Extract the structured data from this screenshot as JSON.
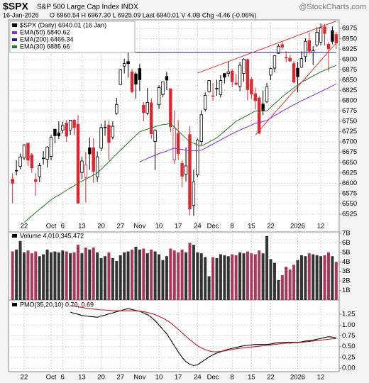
{
  "chart_data": [
    {
      "type": "candlestick",
      "symbol": "$SPX",
      "title": "S&P 500 Large Cap Index INDX",
      "watermark": "@StockCharts.com",
      "date": "16-Jan-2026",
      "quote": "O 6960.54 H 6967.30 L 6925.09 Last 6940.01 V 4.0B Chg -4.46 (-0.06%)",
      "legend": "$SPX (Daily) 6940.01 (16 Jan)",
      "up_color": "#000000",
      "down_color": "#e0262e",
      "categories": [
        null,
        null,
        null,
        "22",
        null,
        null,
        null,
        null,
        null,
        null,
        "Oct",
        null,
        null,
        "6",
        null,
        null,
        null,
        null,
        "13",
        null,
        null,
        null,
        null,
        "20",
        null,
        null,
        null,
        null,
        "27",
        null,
        null,
        null,
        null,
        "Nov",
        null,
        null,
        null,
        null,
        "10",
        null,
        null,
        null,
        null,
        "17",
        null,
        null,
        null,
        null,
        "24",
        null,
        null,
        null,
        "Dec",
        null,
        null,
        null,
        null,
        "8",
        null,
        null,
        null,
        null,
        "15",
        null,
        null,
        null,
        null,
        "22",
        null,
        null,
        null,
        null,
        null,
        null,
        "2026",
        null,
        null,
        null,
        null,
        null,
        "12",
        null,
        null,
        null,
        null
      ],
      "open": [
        6610,
        6630,
        6641,
        6661,
        6697,
        6669,
        6609,
        6616,
        6661,
        6658,
        6665,
        6731,
        6722,
        6729,
        6746,
        6729,
        6753,
        6743,
        6626,
        6614,
        6686,
        6686,
        6615,
        6685,
        6736,
        6741,
        6712,
        6769,
        6839,
        6884,
        6895,
        6870,
        6865,
        6878,
        6789,
        6770,
        6795,
        6701,
        6790,
        6815,
        6859,
        6829,
        6656,
        6721,
        6648,
        6622,
        6718,
        6546,
        6620,
        6701,
        6779,
        6822,
        6812,
        6830,
        6815,
        6866,
        6866,
        6872,
        6843,
        6835,
        6866,
        6900,
        6852,
        6817,
        6807,
        6792,
        6797,
        6862,
        6879,
        6915,
        6936,
        6905,
        6903,
        6890,
        6879,
        6881,
        6907,
        6946,
        6917,
        6935,
        6942,
        6979,
        6937,
        6970,
        6960.54
      ],
      "high": [
        6624,
        6656,
        6672,
        6695,
        6698,
        6673,
        6624,
        6649,
        6678,
        6690,
        6717,
        6731,
        6750,
        6749,
        6754,
        6753,
        6755,
        6765,
        6664,
        6676,
        6711,
        6709,
        6677,
        6744,
        6752,
        6752,
        6750,
        6807,
        6877,
        6902,
        6920,
        6877,
        6870,
        6889,
        6797,
        6831,
        6806,
        6731,
        6838,
        6847,
        6870,
        6830,
        6776,
        6753,
        6655,
        6687,
        6738,
        6633,
        6708,
        6777,
        6820,
        6850,
        6843,
        6851,
        6862,
        6867,
        6895,
        6877,
        6865,
        6894,
        6903,
        6902,
        6856,
        6832,
        6811,
        6825,
        6843,
        6880,
        6910,
        6937,
        6945,
        6920,
        6910,
        6896,
        6894,
        6920,
        6951,
        6965,
        6932,
        6978,
        6987,
        6986,
        6942,
        6980,
        6967.3
      ],
      "low": [
        6551,
        6619,
        6634,
        6656,
        6642,
        6626,
        6570,
        6603,
        6645,
        6638,
        6656,
        6697,
        6707,
        6721,
        6700,
        6717,
        6717,
        6550,
        6611,
        6553,
        6632,
        6601,
        6603,
        6678,
        6715,
        6656,
        6706,
        6766,
        6839,
        6866,
        6856,
        6819,
        6805,
        6824,
        6750,
        6765,
        6708,
        6632,
        6780,
        6808,
        6826,
        6724,
        6647,
        6657,
        6590,
        6604,
        6522,
        6521,
        6614,
        6693,
        6774,
        6820,
        6800,
        6812,
        6808,
        6842,
        6858,
        6833,
        6837,
        6823,
        6846,
        6801,
        6804,
        6779,
        6720,
        6765,
        6794,
        6850,
        6869,
        6914,
        6926,
        6893,
        6894,
        6842,
        6820,
        6880,
        6894,
        6913,
        6887,
        6931,
        6934,
        6934,
        6871,
        6937,
        6925.09
      ],
      "close": [
        6600,
        6631,
        6664,
        6693,
        6656,
        6637,
        6604,
        6643,
        6661,
        6688,
        6711,
        6715,
        6715,
        6740,
        6714,
        6753,
        6735,
        6552,
        6654,
        6644,
        6671,
        6629,
        6664,
        6735,
        6735,
        6699,
        6738,
        6791,
        6875,
        6890,
        6890,
        6822,
        6840,
        6851,
        6771,
        6796,
        6720,
        6728,
        6832,
        6846,
        6850,
        6737,
        6734,
        6672,
        6617,
        6642,
        6538,
        6603,
        6705,
        6766,
        6813,
        6849,
        6812,
        6829,
        6849,
        6857,
        6870,
        6846,
        6840,
        6886,
        6901,
        6827,
        6816,
        6800,
        6721,
        6775,
        6834,
        6878,
        6909,
        6932,
        6930,
        6905,
        6896,
        6845,
        6858,
        6902,
        6944,
        6920,
        6921,
        6966,
        6977,
        6963,
        6926,
        6944,
        6940.01
      ],
      "series": [
        {
          "name": "EMA(50) 6840.62",
          "color": "#8a2be2",
          "values": [
            null,
            null,
            null,
            null,
            null,
            null,
            null,
            null,
            null,
            null,
            null,
            null,
            null,
            null,
            null,
            null,
            null,
            null,
            null,
            null,
            null,
            null,
            null,
            null,
            null,
            null,
            null,
            null,
            null,
            null,
            null,
            null,
            null,
            6652,
            6656,
            6660,
            6664,
            6668,
            6672,
            6675,
            6678,
            6682,
            6685,
            6683,
            6682,
            6680,
            6678,
            6679,
            6679,
            6680,
            6685,
            6690,
            6695,
            6700,
            6705,
            6710,
            6715,
            6720,
            6725,
            6729,
            6733,
            6737,
            6741,
            6745,
            6747,
            6750,
            6752,
            6758,
            6764,
            6769,
            6775,
            6780,
            6785,
            6790,
            6795,
            6800,
            6804,
            6809,
            6813,
            6818,
            6822,
            6827,
            6831,
            6836,
            6840.62
          ]
        },
        {
          "name": "EMA(200) 6466.34",
          "color": "#1c1c8c"
        },
        {
          "name": "EMA(30) 6885.66",
          "color": "#1e7d1e",
          "values": [
            null,
            null,
            null,
            6505,
            6513,
            6521,
            6529,
            6537,
            6544,
            6552,
            6560,
            6566,
            6571,
            6577,
            6583,
            6589,
            6594,
            6600,
            6605,
            6610,
            6615,
            6620,
            6625,
            6634,
            6643,
            6652,
            6662,
            6671,
            6680,
            6689,
            6698,
            6707,
            6716,
            6725,
            6728,
            6731,
            6734,
            6737,
            6740,
            6742,
            6743,
            6745,
            6736,
            6727,
            6718,
            6709,
            6700,
            6697,
            6693,
            6690,
            6695,
            6700,
            6705,
            6710,
            6718,
            6726,
            6734,
            6742,
            6750,
            6755,
            6760,
            6765,
            6770,
            6775,
            6775,
            6775,
            6775,
            6784,
            6793,
            6801,
            6810,
            6817,
            6824,
            6831,
            6838,
            6845,
            6850,
            6855,
            6860,
            6865,
            6870,
            6874,
            6878,
            6882,
            6885.66
          ]
        }
      ],
      "annotations": [
        {
          "color": "#1a1aa8",
          "x": [
            28,
            84
          ],
          "y": [
            6917,
            6917
          ]
        },
        {
          "color": "#e8372f",
          "x": [
            48,
            84
          ],
          "y": [
            6867,
            6993
          ]
        },
        {
          "color": "#e8372f",
          "x": [
            63,
            84
          ],
          "y": [
            6717,
            6940
          ]
        }
      ],
      "ylim": [
        6482,
        6996
      ],
      "yticks": [
        6525,
        6550,
        6575,
        6600,
        6625,
        6650,
        6675,
        6700,
        6725,
        6750,
        6775,
        6800,
        6825,
        6850,
        6875,
        6900,
        6925,
        6950,
        6975
      ],
      "grid": true
    },
    {
      "type": "bar",
      "title": "Volume 4,010,345,472",
      "values": [
        5.1,
        5.3,
        6.2,
        5.0,
        5.2,
        4.9,
        5.1,
        4.6,
        4.8,
        5.3,
        5.0,
        5.1,
        5.0,
        5.2,
        5.1,
        4.9,
        5.0,
        5.8,
        4.9,
        5.5,
        5.3,
        5.5,
        5.0,
        4.4,
        4.6,
        5.0,
        4.4,
        4.1,
        4.7,
        5.0,
        5.1,
        5.3,
        5.6,
        5.3,
        5.4,
        4.9,
        5.3,
        5.1,
        4.8,
        4.2,
        4.6,
        5.4,
        5.2,
        5.0,
        5.3,
        5.0,
        6.0,
        5.8,
        5.0,
        4.9,
        4.5,
        2.5,
        4.5,
        4.4,
        4.8,
        4.7,
        4.6,
        4.8,
        4.7,
        5.0,
        4.9,
        5.1,
        4.9,
        4.8,
        5.2,
        4.9,
        6.7,
        4.3,
        3.9,
        2.1,
        2.6,
        3.5,
        3.2,
        3.7,
        4.2,
        4.7,
        4.6,
        4.9,
        4.8,
        4.7,
        4.6,
        4.7,
        5.0,
        4.6,
        4.0
      ],
      "up_color": "#333333",
      "down_color": "#a8385c",
      "ylim": [
        0,
        7.15
      ],
      "yticks": [
        {
          "value": 1,
          "label": "1B"
        },
        {
          "value": 2,
          "label": "2B"
        },
        {
          "value": 3,
          "label": "3B"
        },
        {
          "value": 4,
          "label": "4B"
        },
        {
          "value": 5,
          "label": "5B"
        },
        {
          "value": 6,
          "label": "6B"
        },
        {
          "value": 7,
          "label": "7B"
        }
      ],
      "grid": true
    },
    {
      "type": "line",
      "title": "PMO(35,20,10) 0.70, 0.69",
      "categories": [
        null,
        null,
        null,
        "22",
        null,
        null,
        null,
        null,
        null,
        null,
        "Oct",
        null,
        null,
        "6",
        null,
        null,
        null,
        null,
        "13",
        null,
        null,
        null,
        null,
        "20",
        null,
        null,
        null,
        null,
        "27",
        null,
        null,
        null,
        null,
        "Nov",
        null,
        null,
        null,
        null,
        "10",
        null,
        null,
        null,
        null,
        "17",
        null,
        null,
        null,
        null,
        "24",
        null,
        null,
        null,
        "Dec",
        null,
        null,
        null,
        null,
        "8",
        null,
        null,
        null,
        null,
        "15",
        null,
        null,
        null,
        null,
        "22",
        null,
        null,
        null,
        null,
        null,
        null,
        "2026",
        null,
        null,
        null,
        null,
        null,
        "12",
        null,
        null,
        null,
        null
      ],
      "series": [
        {
          "color": "#000000",
          "values": [
            null,
            null,
            null,
            null,
            null,
            null,
            null,
            null,
            null,
            null,
            null,
            null,
            null,
            null,
            null,
            1.3,
            1.27,
            1.25,
            1.22,
            1.21,
            1.2,
            1.19,
            1.18,
            1.21,
            1.23,
            1.26,
            1.28,
            1.31,
            1.33,
            1.36,
            1.38,
            1.36,
            1.34,
            1.32,
            1.28,
            1.24,
            1.18,
            1.1,
            1.0,
            0.9,
            0.8,
            0.66,
            0.52,
            0.38,
            0.25,
            0.15,
            0.09,
            0.06,
            0.08,
            0.14,
            0.2,
            0.26,
            0.31,
            0.35,
            0.38,
            0.41,
            0.44,
            0.46,
            0.48,
            0.5,
            0.52,
            0.53,
            0.54,
            0.55,
            0.55,
            0.55,
            0.55,
            0.56,
            0.58,
            0.59,
            0.6,
            0.6,
            0.6,
            0.6,
            0.6,
            0.61,
            0.63,
            0.64,
            0.65,
            0.67,
            0.69,
            0.71,
            0.73,
            0.72,
            0.7
          ]
        },
        {
          "color": "#c0182a",
          "values": [
            null,
            null,
            null,
            null,
            null,
            null,
            null,
            null,
            null,
            null,
            null,
            null,
            null,
            null,
            null,
            1.45,
            1.44,
            1.42,
            1.41,
            1.39,
            1.38,
            1.37,
            1.36,
            1.35,
            1.35,
            1.34,
            1.33,
            1.33,
            1.33,
            1.33,
            1.33,
            1.33,
            1.33,
            1.32,
            1.31,
            1.29,
            1.27,
            1.24,
            1.2,
            1.16,
            1.11,
            1.05,
            0.98,
            0.9,
            0.82,
            0.74,
            0.66,
            0.59,
            0.52,
            0.47,
            0.43,
            0.4,
            0.38,
            0.38,
            0.39,
            0.4,
            0.42,
            0.43,
            0.45,
            0.46,
            0.47,
            0.48,
            0.49,
            0.5,
            0.51,
            0.52,
            0.53,
            0.54,
            0.55,
            0.56,
            0.57,
            0.58,
            0.58,
            0.59,
            0.59,
            0.6,
            0.61,
            0.62,
            0.63,
            0.64,
            0.65,
            0.66,
            0.67,
            0.68,
            0.69
          ]
        }
      ],
      "ylim": [
        -0.08,
        1.58
      ],
      "yticks": [
        {
          "value": 0,
          "label": "0.00"
        },
        {
          "value": 0.25,
          "label": "0.25"
        },
        {
          "value": 0.5,
          "label": "0.50"
        },
        {
          "value": 0.75,
          "label": "0.75"
        },
        {
          "value": 1,
          "label": "1.00"
        },
        {
          "value": 1.25,
          "label": "1.25"
        }
      ],
      "grid": true
    }
  ]
}
